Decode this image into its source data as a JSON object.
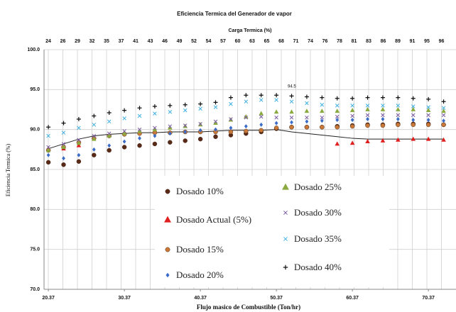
{
  "chart_data": {
    "type": "scatter",
    "title": "Eficiencia Termica del Generador de vapor",
    "top_axis_label": "Carga Termica (%)",
    "top_categories": [
      "24",
      "26",
      "29",
      "32",
      "35",
      "37",
      "41",
      "43",
      "46",
      "49",
      "52",
      "54",
      "57",
      "60",
      "63",
      "65",
      "68",
      "71",
      "74",
      "76",
      "78",
      "81",
      "83",
      "86",
      "89",
      "91",
      "95",
      "96"
    ],
    "xlabel": "Flujo masico de Combustible (Ton/hr)",
    "ylabel": "Eficiencia Termica (%)",
    "xlim": [
      19.8,
      74
    ],
    "xticks": [
      20.37,
      30.37,
      40.37,
      50.37,
      60.37,
      70.37
    ],
    "ylim": [
      70,
      100
    ],
    "yticks": [
      {
        "value": 70,
        "label": "70.0"
      },
      {
        "value": 75,
        "label": "75.0"
      },
      {
        "value": 80,
        "label": "80.0"
      },
      {
        "value": 85,
        "label": "85.0"
      },
      {
        "value": 90,
        "label": "90.0"
      },
      {
        "value": 95,
        "label": "95.0"
      },
      {
        "value": 100,
        "label": "100.0"
      }
    ],
    "grid": true,
    "x": [
      20.37,
      22.37,
      24.37,
      26.37,
      28.37,
      30.37,
      32.37,
      34.37,
      36.37,
      38.37,
      40.37,
      42.37,
      44.37,
      46.37,
      48.37,
      50.37,
      52.37,
      54.37,
      56.37,
      58.37,
      60.37,
      62.37,
      64.37,
      66.37,
      68.37,
      70.37,
      72.37
    ],
    "series": [
      {
        "name": "Dosado 10%",
        "color": "#5a2a18",
        "marker": "circle",
        "values": [
          85.9,
          85.6,
          86.0,
          86.8,
          87.4,
          87.8,
          88.0,
          88.2,
          88.4,
          88.6,
          88.8,
          89.1,
          89.3,
          89.5,
          89.7,
          90.1,
          90.3,
          90.3,
          90.3,
          90.4,
          90.5,
          90.6,
          90.6,
          90.7,
          90.7,
          90.7,
          90.6
        ]
      },
      {
        "name": "Dosado Actual (5%)",
        "color": "#e02020",
        "marker": "triangle",
        "values": [
          87.6,
          87.6,
          88.0,
          null,
          null,
          null,
          null,
          null,
          null,
          null,
          null,
          null,
          null,
          null,
          null,
          null,
          null,
          null,
          null,
          88.2,
          88.3,
          88.5,
          88.6,
          88.7,
          88.8,
          88.8,
          88.7
        ]
      },
      {
        "name": "Dosado 15%",
        "color": "#c87838",
        "marker": "circle",
        "values": [
          87.4,
          87.8,
          88.4,
          88.9,
          89.2,
          89.4,
          89.5,
          89.6,
          89.6,
          89.7,
          89.7,
          89.7,
          89.7,
          89.8,
          89.9,
          90.2,
          90.3,
          90.3,
          90.3,
          90.3,
          90.4,
          90.5,
          90.5,
          90.6,
          90.6,
          90.6,
          90.6
        ]
      },
      {
        "name": "Dosado 20%",
        "color": "#3a6cc8",
        "marker": "diamond",
        "values": [
          86.8,
          86.4,
          86.8,
          87.5,
          88.0,
          88.5,
          88.9,
          89.2,
          89.5,
          89.7,
          89.9,
          90.0,
          90.2,
          90.4,
          90.6,
          90.8,
          90.9,
          91.0,
          91.1,
          91.2,
          91.2,
          91.3,
          91.3,
          91.3,
          91.2,
          91.2,
          91.1
        ]
      },
      {
        "name": "Dosado 25%",
        "color": "#8aaa40",
        "marker": "triangle",
        "values": [
          87.4,
          87.8,
          88.3,
          88.8,
          89.2,
          89.5,
          89.8,
          90.0,
          90.2,
          90.4,
          90.6,
          90.8,
          91.2,
          91.6,
          92.0,
          92.2,
          92.2,
          92.3,
          92.3,
          92.3,
          92.4,
          92.5,
          92.5,
          92.5,
          92.5,
          92.4,
          92.3
        ]
      },
      {
        "name": "Dosado 30%",
        "color": "#7a5aa0",
        "marker": "x",
        "values": [
          87.8,
          88.2,
          88.7,
          89.2,
          89.5,
          89.8,
          90.0,
          90.2,
          90.4,
          90.5,
          90.7,
          91.0,
          91.3,
          91.5,
          91.6,
          91.5,
          91.5,
          91.5,
          91.5,
          91.6,
          91.7,
          91.8,
          91.8,
          91.8,
          91.8,
          91.8,
          91.8
        ]
      },
      {
        "name": "Dosado 35%",
        "color": "#40b0e0",
        "marker": "x",
        "values": [
          89.2,
          89.6,
          90.2,
          90.6,
          91.0,
          91.4,
          91.7,
          92.0,
          92.2,
          92.4,
          92.6,
          92.8,
          93.2,
          93.5,
          93.7,
          93.7,
          93.5,
          93.3,
          93.1,
          93.0,
          93.0,
          93.0,
          93.0,
          93.0,
          92.9,
          92.8,
          92.7
        ]
      },
      {
        "name": "Dosado 40%",
        "color": "#111111",
        "marker": "plus",
        "values": [
          90.3,
          90.8,
          91.3,
          91.7,
          92.1,
          92.4,
          92.7,
          92.9,
          93.0,
          93.1,
          93.2,
          93.4,
          94.0,
          94.3,
          94.3,
          94.3,
          94.2,
          94.1,
          94.0,
          93.9,
          93.9,
          94.0,
          94.0,
          94.0,
          93.9,
          93.8,
          93.5
        ]
      }
    ],
    "trend_line": {
      "color": "#222222",
      "values": [
        87.6,
        88.2,
        88.8,
        89.2,
        89.4,
        89.5,
        89.6,
        89.6,
        89.7,
        89.7,
        89.7,
        89.8,
        89.9,
        89.9,
        89.9,
        90.0,
        89.7,
        89.5,
        89.3,
        89.1,
        88.9,
        88.8,
        88.8,
        88.8,
        88.8,
        88.8,
        88.8
      ]
    },
    "annotation": {
      "text": "94.5",
      "x": 52.4,
      "y": 95.4
    }
  }
}
